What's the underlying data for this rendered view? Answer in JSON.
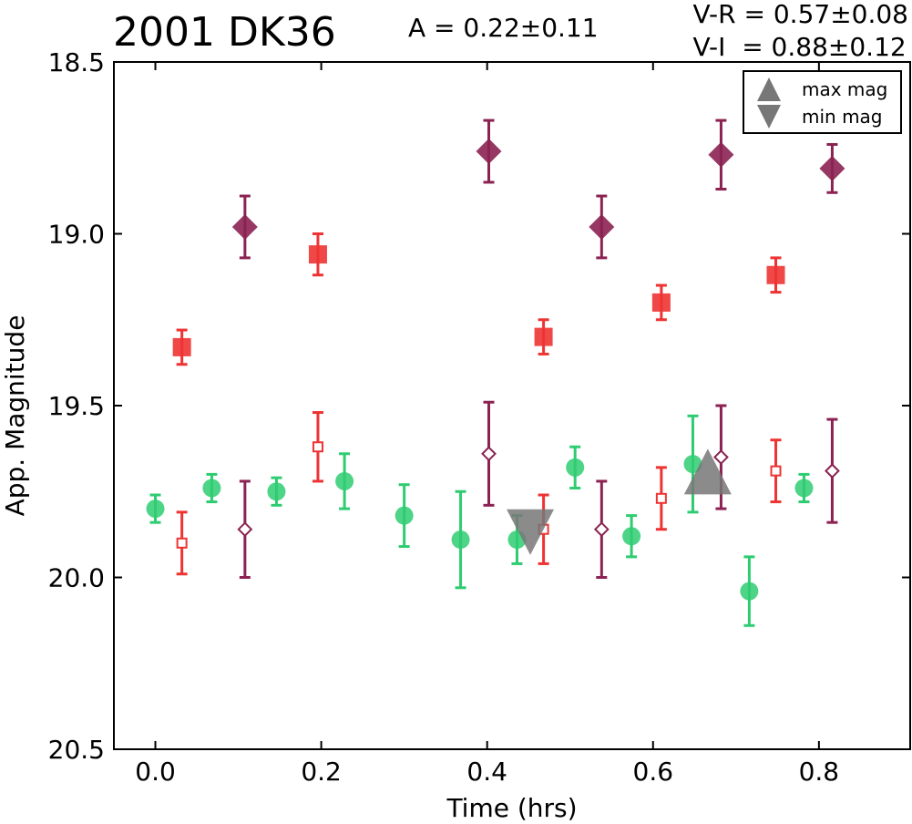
{
  "header": {
    "title": "2001 DK36",
    "amplitude": "A  = 0.22±0.11",
    "color_vr": "V-R = 0.57±0.08",
    "color_vi": "V-I  = 0.88±0.12"
  },
  "chart_data": {
    "type": "scatter",
    "xlabel": "Time (hrs)",
    "ylabel": "App. Magnitude",
    "xlim": [
      -0.05,
      0.91
    ],
    "ylim": [
      20.5,
      18.5
    ],
    "y_inverted": true,
    "xticks": [
      "0.0",
      "0.2",
      "0.4",
      "0.6",
      "0.8"
    ],
    "yticks": [
      "18.5",
      "19.0",
      "19.5",
      "20.0",
      "20.5"
    ],
    "grid": false,
    "legend": {
      "position": "top-right",
      "entries": [
        "max mag",
        "min mag"
      ]
    },
    "series": [
      {
        "color": "#2ecc71",
        "marker": "circle",
        "filled": true,
        "points": [
          {
            "x": 0.0,
            "y": 19.8,
            "err": 0.04
          },
          {
            "x": 0.068,
            "y": 19.74,
            "err": 0.04
          },
          {
            "x": 0.146,
            "y": 19.75,
            "err": 0.04
          },
          {
            "x": 0.228,
            "y": 19.72,
            "err": 0.08
          },
          {
            "x": 0.3,
            "y": 19.82,
            "err": 0.09
          },
          {
            "x": 0.368,
            "y": 19.89,
            "err": 0.14
          },
          {
            "x": 0.436,
            "y": 19.89,
            "err": 0.07
          },
          {
            "x": 0.506,
            "y": 19.68,
            "err": 0.06
          },
          {
            "x": 0.574,
            "y": 19.88,
            "err": 0.06
          },
          {
            "x": 0.648,
            "y": 19.67,
            "err": 0.14
          },
          {
            "x": 0.716,
            "y": 20.04,
            "err": 0.1
          },
          {
            "x": 0.782,
            "y": 19.74,
            "err": 0.04
          }
        ]
      },
      {
        "color": "#ee3333",
        "marker": "square",
        "filled": true,
        "points": [
          {
            "x": 0.032,
            "y": 19.33,
            "err": 0.05
          },
          {
            "x": 0.196,
            "y": 19.06,
            "err": 0.06
          },
          {
            "x": 0.468,
            "y": 19.3,
            "err": 0.05
          },
          {
            "x": 0.61,
            "y": 19.2,
            "err": 0.05
          },
          {
            "x": 0.748,
            "y": 19.12,
            "err": 0.05
          }
        ]
      },
      {
        "color": "#ee3333",
        "marker": "square",
        "filled": false,
        "points": [
          {
            "x": 0.032,
            "y": 19.9,
            "err": 0.09
          },
          {
            "x": 0.196,
            "y": 19.62,
            "err": 0.1
          },
          {
            "x": 0.468,
            "y": 19.86,
            "err": 0.1
          },
          {
            "x": 0.61,
            "y": 19.77,
            "err": 0.09
          },
          {
            "x": 0.748,
            "y": 19.69,
            "err": 0.09
          }
        ]
      },
      {
        "color": "#8b2252",
        "marker": "diamond",
        "filled": true,
        "points": [
          {
            "x": 0.108,
            "y": 18.98,
            "err": 0.09
          },
          {
            "x": 0.402,
            "y": 18.76,
            "err": 0.09
          },
          {
            "x": 0.538,
            "y": 18.98,
            "err": 0.09
          },
          {
            "x": 0.682,
            "y": 18.77,
            "err": 0.1
          },
          {
            "x": 0.816,
            "y": 18.81,
            "err": 0.07
          }
        ]
      },
      {
        "color": "#8b2252",
        "marker": "diamond",
        "filled": false,
        "points": [
          {
            "x": 0.108,
            "y": 19.86,
            "err": 0.14
          },
          {
            "x": 0.402,
            "y": 19.64,
            "err": 0.15
          },
          {
            "x": 0.538,
            "y": 19.86,
            "err": 0.14
          },
          {
            "x": 0.682,
            "y": 19.65,
            "err": 0.15
          },
          {
            "x": 0.816,
            "y": 19.69,
            "err": 0.15
          }
        ]
      }
    ],
    "extrema": [
      {
        "label": "max mag",
        "x": 0.666,
        "y": 19.7,
        "color": "#777777"
      },
      {
        "label": "min mag",
        "x": 0.452,
        "y": 19.86,
        "color": "#777777"
      }
    ]
  }
}
